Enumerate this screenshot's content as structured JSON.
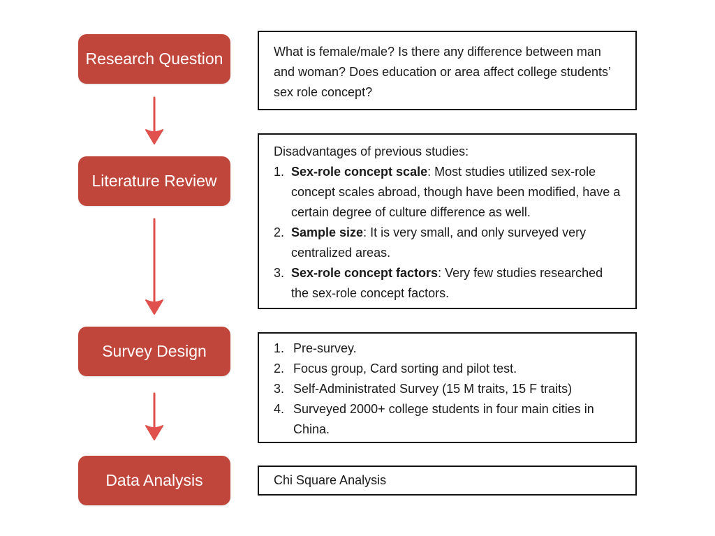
{
  "colors": {
    "step_fill": "#c0453a",
    "arrow": "#e0504c",
    "box_border": "#111111"
  },
  "steps": [
    {
      "label": "Research Question"
    },
    {
      "label": "Literature Review"
    },
    {
      "label": "Survey Design"
    },
    {
      "label": "Data Analysis"
    }
  ],
  "research_question": {
    "text": "What is female/male? Is there any difference between man and woman? Does education or area affect college students’ sex role concept?"
  },
  "literature_review": {
    "intro": "Disadvantages of previous studies:",
    "items": [
      {
        "num": "1.",
        "term": "Sex-role concept scale",
        "text": ": Most studies utilized sex-role concept scales abroad, though have been modified, have a certain degree of culture difference as well."
      },
      {
        "num": "2.",
        "term": "Sample size",
        "text": ": It is very small, and only surveyed very centralized areas."
      },
      {
        "num": "3.",
        "term": "Sex-role concept factors",
        "text": ": Very few studies researched the sex-role concept factors."
      }
    ]
  },
  "survey_design": {
    "items": [
      {
        "num": "1.",
        "text": "Pre-survey."
      },
      {
        "num": "2.",
        "text": "Focus group, Card sorting and pilot test."
      },
      {
        "num": "3.",
        "text": "Self-Administrated Survey (15 M traits, 15 F traits)"
      },
      {
        "num": "4.",
        "text": "Surveyed 2000+ college students in four main cities in China."
      }
    ]
  },
  "data_analysis": {
    "text": "Chi Square Analysis"
  }
}
